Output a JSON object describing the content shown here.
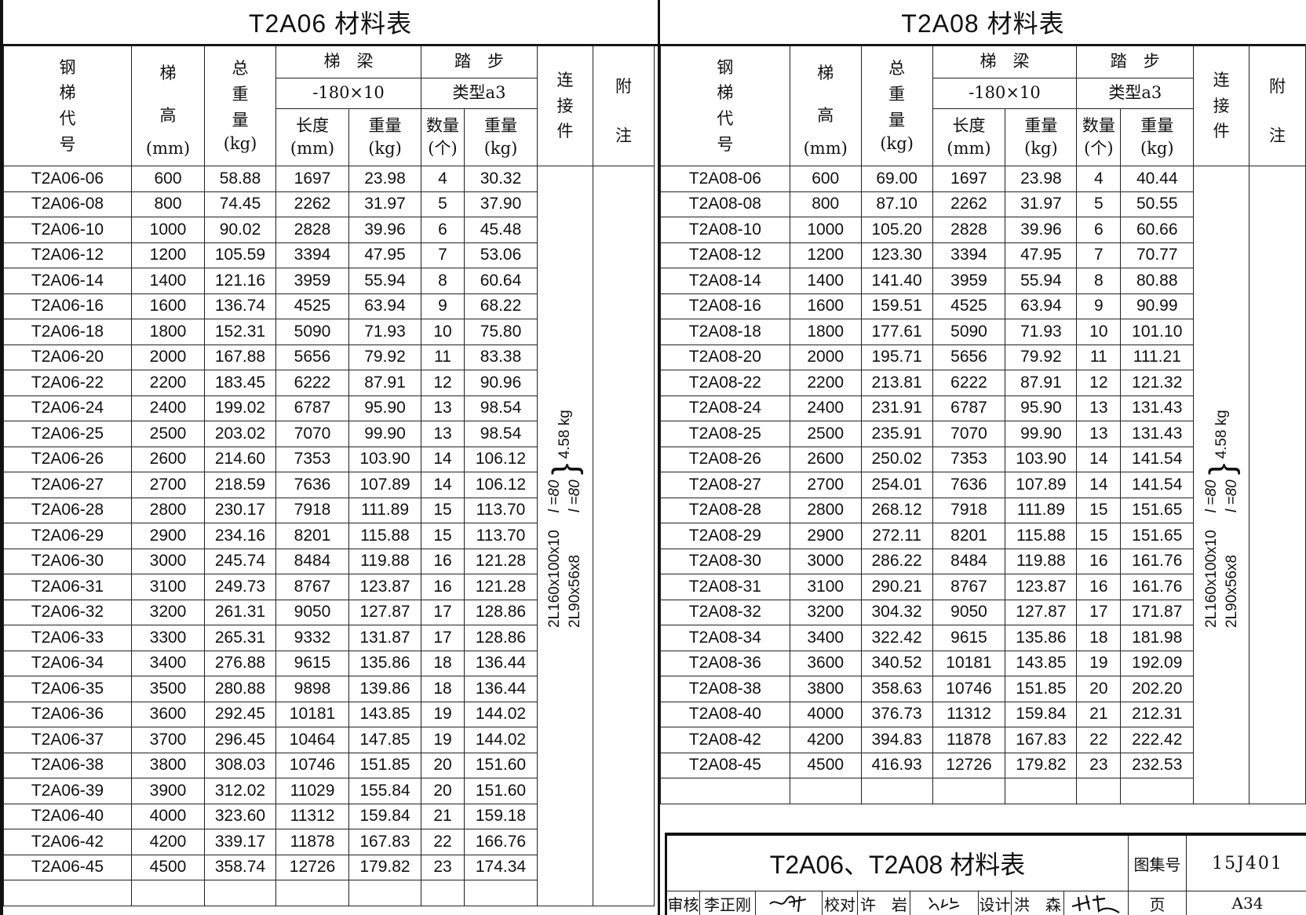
{
  "tables": [
    {
      "title": "T2A06 材料表",
      "headers": {
        "code": "钢梯代号",
        "height": "梯高",
        "height_unit": "(mm)",
        "total": "总重量",
        "total_unit": "(kg)",
        "beam": "梯　梁",
        "beam_spec": "-180×10",
        "beam_len": "长度",
        "beam_len_unit": "(mm)",
        "beam_wt": "重量",
        "beam_wt_unit": "(kg)",
        "step": "踏　步",
        "step_type": "类型a3",
        "step_qty": "数量",
        "step_qty_unit": "(个)",
        "step_wt": "重量",
        "step_wt_unit": "(kg)",
        "conn": "连接件",
        "notes": "附注"
      },
      "rows": [
        [
          "T2A06-06",
          "600",
          "58.88",
          "1697",
          "23.98",
          "4",
          "30.32"
        ],
        [
          "T2A06-08",
          "800",
          "74.45",
          "2262",
          "31.97",
          "5",
          "37.90"
        ],
        [
          "T2A06-10",
          "1000",
          "90.02",
          "2828",
          "39.96",
          "6",
          "45.48"
        ],
        [
          "T2A06-12",
          "1200",
          "105.59",
          "3394",
          "47.95",
          "7",
          "53.06"
        ],
        [
          "T2A06-14",
          "1400",
          "121.16",
          "3959",
          "55.94",
          "8",
          "60.64"
        ],
        [
          "T2A06-16",
          "1600",
          "136.74",
          "4525",
          "63.94",
          "9",
          "68.22"
        ],
        [
          "T2A06-18",
          "1800",
          "152.31",
          "5090",
          "71.93",
          "10",
          "75.80"
        ],
        [
          "T2A06-20",
          "2000",
          "167.88",
          "5656",
          "79.92",
          "11",
          "83.38"
        ],
        [
          "T2A06-22",
          "2200",
          "183.45",
          "6222",
          "87.91",
          "12",
          "90.96"
        ],
        [
          "T2A06-24",
          "2400",
          "199.02",
          "6787",
          "95.90",
          "13",
          "98.54"
        ],
        [
          "T2A06-25",
          "2500",
          "203.02",
          "7070",
          "99.90",
          "13",
          "98.54"
        ],
        [
          "T2A06-26",
          "2600",
          "214.60",
          "7353",
          "103.90",
          "14",
          "106.12"
        ],
        [
          "T2A06-27",
          "2700",
          "218.59",
          "7636",
          "107.89",
          "14",
          "106.12"
        ],
        [
          "T2A06-28",
          "2800",
          "230.17",
          "7918",
          "111.89",
          "15",
          "113.70"
        ],
        [
          "T2A06-29",
          "2900",
          "234.16",
          "8201",
          "115.88",
          "15",
          "113.70"
        ],
        [
          "T2A06-30",
          "3000",
          "245.74",
          "8484",
          "119.88",
          "16",
          "121.28"
        ],
        [
          "T2A06-31",
          "3100",
          "249.73",
          "8767",
          "123.87",
          "16",
          "121.28"
        ],
        [
          "T2A06-32",
          "3200",
          "261.31",
          "9050",
          "127.87",
          "17",
          "128.86"
        ],
        [
          "T2A06-33",
          "3300",
          "265.31",
          "9332",
          "131.87",
          "17",
          "128.86"
        ],
        [
          "T2A06-34",
          "3400",
          "276.88",
          "9615",
          "135.86",
          "18",
          "136.44"
        ],
        [
          "T2A06-35",
          "3500",
          "280.88",
          "9898",
          "139.86",
          "18",
          "136.44"
        ],
        [
          "T2A06-36",
          "3600",
          "292.45",
          "10181",
          "143.85",
          "19",
          "144.02"
        ],
        [
          "T2A06-37",
          "3700",
          "296.45",
          "10464",
          "147.85",
          "19",
          "144.02"
        ],
        [
          "T2A06-38",
          "3800",
          "308.03",
          "10746",
          "151.85",
          "20",
          "151.60"
        ],
        [
          "T2A06-39",
          "3900",
          "312.02",
          "11029",
          "155.84",
          "20",
          "151.60"
        ],
        [
          "T2A06-40",
          "4000",
          "323.60",
          "11312",
          "159.84",
          "21",
          "159.18"
        ],
        [
          "T2A06-42",
          "4200",
          "339.17",
          "11878",
          "167.83",
          "22",
          "166.76"
        ],
        [
          "T2A06-45",
          "4500",
          "358.74",
          "12726",
          "179.82",
          "23",
          "174.34"
        ]
      ],
      "connection": {
        "line1": "2L160x100x10",
        "line2": "2L90x56x8",
        "len1": "l =80",
        "len2": "l =80",
        "weight": "4.58 kg"
      }
    },
    {
      "title": "T2A08 材料表",
      "headers": {
        "code": "钢梯代号",
        "height": "梯高",
        "height_unit": "(mm)",
        "total": "总重量",
        "total_unit": "(kg)",
        "beam": "梯　梁",
        "beam_spec": "-180×10",
        "beam_len": "长度",
        "beam_len_unit": "(mm)",
        "beam_wt": "重量",
        "beam_wt_unit": "(kg)",
        "step": "踏　步",
        "step_type": "类型a3",
        "step_qty": "数量",
        "step_qty_unit": "(个)",
        "step_wt": "重量",
        "step_wt_unit": "(kg)",
        "conn": "连接件",
        "notes": "附注"
      },
      "rows": [
        [
          "T2A08-06",
          "600",
          "69.00",
          "1697",
          "23.98",
          "4",
          "40.44"
        ],
        [
          "T2A08-08",
          "800",
          "87.10",
          "2262",
          "31.97",
          "5",
          "50.55"
        ],
        [
          "T2A08-10",
          "1000",
          "105.20",
          "2828",
          "39.96",
          "6",
          "60.66"
        ],
        [
          "T2A08-12",
          "1200",
          "123.30",
          "3394",
          "47.95",
          "7",
          "70.77"
        ],
        [
          "T2A08-14",
          "1400",
          "141.40",
          "3959",
          "55.94",
          "8",
          "80.88"
        ],
        [
          "T2A08-16",
          "1600",
          "159.51",
          "4525",
          "63.94",
          "9",
          "90.99"
        ],
        [
          "T2A08-18",
          "1800",
          "177.61",
          "5090",
          "71.93",
          "10",
          "101.10"
        ],
        [
          "T2A08-20",
          "2000",
          "195.71",
          "5656",
          "79.92",
          "11",
          "111.21"
        ],
        [
          "T2A08-22",
          "2200",
          "213.81",
          "6222",
          "87.91",
          "12",
          "121.32"
        ],
        [
          "T2A08-24",
          "2400",
          "231.91",
          "6787",
          "95.90",
          "13",
          "131.43"
        ],
        [
          "T2A08-25",
          "2500",
          "235.91",
          "7070",
          "99.90",
          "13",
          "131.43"
        ],
        [
          "T2A08-26",
          "2600",
          "250.02",
          "7353",
          "103.90",
          "14",
          "141.54"
        ],
        [
          "T2A08-27",
          "2700",
          "254.01",
          "7636",
          "107.89",
          "14",
          "141.54"
        ],
        [
          "T2A08-28",
          "2800",
          "268.12",
          "7918",
          "111.89",
          "15",
          "151.65"
        ],
        [
          "T2A08-29",
          "2900",
          "272.11",
          "8201",
          "115.88",
          "15",
          "151.65"
        ],
        [
          "T2A08-30",
          "3000",
          "286.22",
          "8484",
          "119.88",
          "16",
          "161.76"
        ],
        [
          "T2A08-31",
          "3100",
          "290.21",
          "8767",
          "123.87",
          "16",
          "161.76"
        ],
        [
          "T2A08-32",
          "3200",
          "304.32",
          "9050",
          "127.87",
          "17",
          "171.87"
        ],
        [
          "T2A08-34",
          "3400",
          "322.42",
          "9615",
          "135.86",
          "18",
          "181.98"
        ],
        [
          "T2A08-36",
          "3600",
          "340.52",
          "10181",
          "143.85",
          "19",
          "192.09"
        ],
        [
          "T2A08-38",
          "3800",
          "358.63",
          "10746",
          "151.85",
          "20",
          "202.20"
        ],
        [
          "T2A08-40",
          "4000",
          "376.73",
          "11312",
          "159.84",
          "21",
          "212.31"
        ],
        [
          "T2A08-42",
          "4200",
          "394.83",
          "11878",
          "167.83",
          "22",
          "222.42"
        ],
        [
          "T2A08-45",
          "4500",
          "416.93",
          "12726",
          "179.82",
          "23",
          "232.53"
        ]
      ],
      "connection": {
        "line1": "2L160x100x10",
        "line2": "2L90x56x8",
        "len1": "l =80",
        "len2": "l =80",
        "weight": "4.58 kg"
      }
    }
  ],
  "title_block": {
    "title": "T2A06、T2A08 材料表",
    "atlas_label": "图集号",
    "atlas_no": "15J401",
    "review_label": "审核",
    "reviewer": "李正刚",
    "check_label": "校对",
    "checker": "许　岩",
    "design_label": "设计",
    "designer": "洪　森",
    "page_label": "页",
    "page": "A34"
  }
}
